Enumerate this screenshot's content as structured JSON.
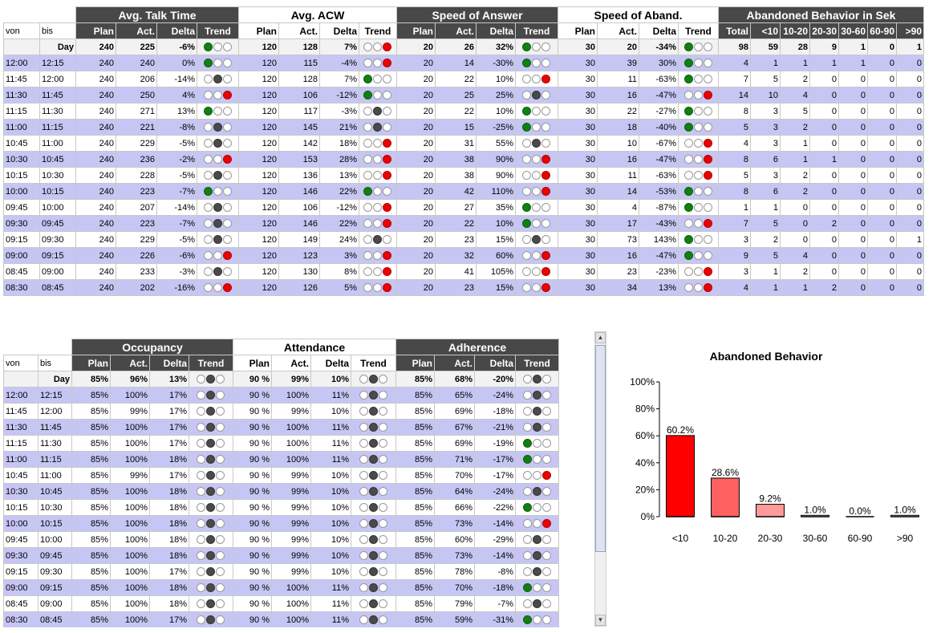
{
  "top_table": {
    "groups": [
      "Avg. Talk Time",
      "Avg. ACW",
      "Speed of Answer",
      "Speed of Aband.",
      "Abandoned Behavior in Sek"
    ],
    "sub_headers": {
      "von": "von",
      "bis": "bis",
      "metric": [
        "Plan",
        "Act.",
        "Delta",
        "Trend"
      ],
      "abandoned": [
        "Total",
        "<10",
        "10-20",
        "20-30",
        "30-60",
        "60-90",
        ">90"
      ]
    },
    "day_label": "Day",
    "day": {
      "talk": [
        "240",
        "225",
        "-6%",
        "gww"
      ],
      "acw": [
        "120",
        "128",
        "7%",
        "wwr"
      ],
      "soa": [
        "20",
        "26",
        "32%",
        "gww"
      ],
      "aband": [
        "30",
        "20",
        "-34%",
        "gww"
      ],
      "ab": [
        "98",
        "59",
        "28",
        "9",
        "1",
        "0",
        "1"
      ]
    },
    "rows": [
      {
        "von": "12:00",
        "bis": "12:15",
        "talk": [
          "240",
          "240",
          "0%",
          "gww"
        ],
        "acw": [
          "120",
          "115",
          "-4%",
          "wwr"
        ],
        "soa": [
          "20",
          "14",
          "-30%",
          "gww"
        ],
        "aband": [
          "30",
          "39",
          "30%",
          "gww"
        ],
        "ab": [
          "4",
          "1",
          "1",
          "1",
          "1",
          "0",
          "0"
        ]
      },
      {
        "von": "11:45",
        "bis": "12:00",
        "talk": [
          "240",
          "206",
          "-14%",
          "wyw"
        ],
        "acw": [
          "120",
          "128",
          "7%",
          "gww"
        ],
        "soa": [
          "20",
          "22",
          "10%",
          "wwr"
        ],
        "aband": [
          "30",
          "11",
          "-63%",
          "gww"
        ],
        "ab": [
          "7",
          "5",
          "2",
          "0",
          "0",
          "0",
          "0"
        ]
      },
      {
        "von": "11:30",
        "bis": "11:45",
        "talk": [
          "240",
          "250",
          "4%",
          "wwr"
        ],
        "acw": [
          "120",
          "106",
          "-12%",
          "gww"
        ],
        "soa": [
          "20",
          "25",
          "25%",
          "wyw"
        ],
        "aband": [
          "30",
          "16",
          "-47%",
          "wwr"
        ],
        "ab": [
          "14",
          "10",
          "4",
          "0",
          "0",
          "0",
          "0"
        ]
      },
      {
        "von": "11:15",
        "bis": "11:30",
        "talk": [
          "240",
          "271",
          "13%",
          "gww"
        ],
        "acw": [
          "120",
          "117",
          "-3%",
          "wyw"
        ],
        "soa": [
          "20",
          "22",
          "10%",
          "gww"
        ],
        "aband": [
          "30",
          "22",
          "-27%",
          "gww"
        ],
        "ab": [
          "8",
          "3",
          "5",
          "0",
          "0",
          "0",
          "0"
        ]
      },
      {
        "von": "11:00",
        "bis": "11:15",
        "talk": [
          "240",
          "221",
          "-8%",
          "wyw"
        ],
        "acw": [
          "120",
          "145",
          "21%",
          "wyw"
        ],
        "soa": [
          "20",
          "15",
          "-25%",
          "gww"
        ],
        "aband": [
          "30",
          "18",
          "-40%",
          "gww"
        ],
        "ab": [
          "5",
          "3",
          "2",
          "0",
          "0",
          "0",
          "0"
        ]
      },
      {
        "von": "10:45",
        "bis": "11:00",
        "talk": [
          "240",
          "229",
          "-5%",
          "wyw"
        ],
        "acw": [
          "120",
          "142",
          "18%",
          "wwr"
        ],
        "soa": [
          "20",
          "31",
          "55%",
          "wyw"
        ],
        "aband": [
          "30",
          "10",
          "-67%",
          "wwr"
        ],
        "ab": [
          "4",
          "3",
          "1",
          "0",
          "0",
          "0",
          "0"
        ]
      },
      {
        "von": "10:30",
        "bis": "10:45",
        "talk": [
          "240",
          "236",
          "-2%",
          "wwr"
        ],
        "acw": [
          "120",
          "153",
          "28%",
          "wwr"
        ],
        "soa": [
          "20",
          "38",
          "90%",
          "wwr"
        ],
        "aband": [
          "30",
          "16",
          "-47%",
          "wwr"
        ],
        "ab": [
          "8",
          "6",
          "1",
          "1",
          "0",
          "0",
          "0"
        ]
      },
      {
        "von": "10:15",
        "bis": "10:30",
        "talk": [
          "240",
          "228",
          "-5%",
          "wyw"
        ],
        "acw": [
          "120",
          "136",
          "13%",
          "wwr"
        ],
        "soa": [
          "20",
          "38",
          "90%",
          "wwr"
        ],
        "aband": [
          "30",
          "11",
          "-63%",
          "wwr"
        ],
        "ab": [
          "5",
          "3",
          "2",
          "0",
          "0",
          "0",
          "0"
        ]
      },
      {
        "von": "10:00",
        "bis": "10:15",
        "talk": [
          "240",
          "223",
          "-7%",
          "gww"
        ],
        "acw": [
          "120",
          "146",
          "22%",
          "gww"
        ],
        "soa": [
          "20",
          "42",
          "110%",
          "wwr"
        ],
        "aband": [
          "30",
          "14",
          "-53%",
          "gww"
        ],
        "ab": [
          "8",
          "6",
          "2",
          "0",
          "0",
          "0",
          "0"
        ]
      },
      {
        "von": "09:45",
        "bis": "10:00",
        "talk": [
          "240",
          "207",
          "-14%",
          "wyw"
        ],
        "acw": [
          "120",
          "106",
          "-12%",
          "wwr"
        ],
        "soa": [
          "20",
          "27",
          "35%",
          "gww"
        ],
        "aband": [
          "30",
          "4",
          "-87%",
          "gww"
        ],
        "ab": [
          "1",
          "1",
          "0",
          "0",
          "0",
          "0",
          "0"
        ]
      },
      {
        "von": "09:30",
        "bis": "09:45",
        "talk": [
          "240",
          "223",
          "-7%",
          "wyw"
        ],
        "acw": [
          "120",
          "146",
          "22%",
          "wwr"
        ],
        "soa": [
          "20",
          "22",
          "10%",
          "gww"
        ],
        "aband": [
          "30",
          "17",
          "-43%",
          "wwr"
        ],
        "ab": [
          "7",
          "5",
          "0",
          "2",
          "0",
          "0",
          "0"
        ]
      },
      {
        "von": "09:15",
        "bis": "09:30",
        "talk": [
          "240",
          "229",
          "-5%",
          "wyw"
        ],
        "acw": [
          "120",
          "149",
          "24%",
          "wyw"
        ],
        "soa": [
          "20",
          "23",
          "15%",
          "wyw"
        ],
        "aband": [
          "30",
          "73",
          "143%",
          "gww"
        ],
        "ab": [
          "3",
          "2",
          "0",
          "0",
          "0",
          "0",
          "1"
        ]
      },
      {
        "von": "09:00",
        "bis": "09:15",
        "talk": [
          "240",
          "226",
          "-6%",
          "wwr"
        ],
        "acw": [
          "120",
          "123",
          "3%",
          "wwr"
        ],
        "soa": [
          "20",
          "32",
          "60%",
          "wwr"
        ],
        "aband": [
          "30",
          "16",
          "-47%",
          "gww"
        ],
        "ab": [
          "9",
          "5",
          "4",
          "0",
          "0",
          "0",
          "0"
        ]
      },
      {
        "von": "08:45",
        "bis": "09:00",
        "talk": [
          "240",
          "233",
          "-3%",
          "wyw"
        ],
        "acw": [
          "120",
          "130",
          "8%",
          "wwr"
        ],
        "soa": [
          "20",
          "41",
          "105%",
          "wwr"
        ],
        "aband": [
          "30",
          "23",
          "-23%",
          "wwr"
        ],
        "ab": [
          "3",
          "1",
          "2",
          "0",
          "0",
          "0",
          "0"
        ]
      },
      {
        "von": "08:30",
        "bis": "08:45",
        "talk": [
          "240",
          "202",
          "-16%",
          "wwr"
        ],
        "acw": [
          "120",
          "126",
          "5%",
          "wwr"
        ],
        "soa": [
          "20",
          "23",
          "15%",
          "wwr"
        ],
        "aband": [
          "30",
          "34",
          "13%",
          "wwr"
        ],
        "ab": [
          "4",
          "1",
          "1",
          "2",
          "0",
          "0",
          "0"
        ]
      }
    ]
  },
  "bottom_table": {
    "groups": [
      "Occupancy",
      "Attendance",
      "Adherence"
    ],
    "sub_headers": {
      "von": "von",
      "bis": "bis",
      "metric": [
        "Plan",
        "Act.",
        "Delta",
        "Trend"
      ]
    },
    "day_label": "Day",
    "day": {
      "occ": [
        "85%",
        "96%",
        "13%",
        "wyw"
      ],
      "att": [
        "90 %",
        "99%",
        "10%",
        "wyw"
      ],
      "adh": [
        "85%",
        "68%",
        "-20%",
        "wyw"
      ]
    },
    "rows": [
      {
        "von": "12:00",
        "bis": "12:15",
        "occ": [
          "85%",
          "100%",
          "17%",
          "wyw"
        ],
        "att": [
          "90 %",
          "100%",
          "11%",
          "wyw"
        ],
        "adh": [
          "85%",
          "65%",
          "-24%",
          "wyw"
        ]
      },
      {
        "von": "11:45",
        "bis": "12:00",
        "occ": [
          "85%",
          "99%",
          "17%",
          "wyw"
        ],
        "att": [
          "90 %",
          "99%",
          "10%",
          "wyw"
        ],
        "adh": [
          "85%",
          "69%",
          "-18%",
          "wyw"
        ]
      },
      {
        "von": "11:30",
        "bis": "11:45",
        "occ": [
          "85%",
          "100%",
          "17%",
          "wyw"
        ],
        "att": [
          "90 %",
          "100%",
          "11%",
          "wyw"
        ],
        "adh": [
          "85%",
          "67%",
          "-21%",
          "wyw"
        ]
      },
      {
        "von": "11:15",
        "bis": "11:30",
        "occ": [
          "85%",
          "100%",
          "17%",
          "wyw"
        ],
        "att": [
          "90 %",
          "100%",
          "11%",
          "wyw"
        ],
        "adh": [
          "85%",
          "69%",
          "-19%",
          "gww"
        ]
      },
      {
        "von": "11:00",
        "bis": "11:15",
        "occ": [
          "85%",
          "100%",
          "18%",
          "wyw"
        ],
        "att": [
          "90 %",
          "100%",
          "11%",
          "wyw"
        ],
        "adh": [
          "85%",
          "71%",
          "-17%",
          "gww"
        ]
      },
      {
        "von": "10:45",
        "bis": "11:00",
        "occ": [
          "85%",
          "99%",
          "17%",
          "wyw"
        ],
        "att": [
          "90 %",
          "99%",
          "10%",
          "wyw"
        ],
        "adh": [
          "85%",
          "70%",
          "-17%",
          "wwr"
        ]
      },
      {
        "von": "10:30",
        "bis": "10:45",
        "occ": [
          "85%",
          "100%",
          "18%",
          "wyw"
        ],
        "att": [
          "90 %",
          "99%",
          "10%",
          "wyw"
        ],
        "adh": [
          "85%",
          "64%",
          "-24%",
          "wyw"
        ]
      },
      {
        "von": "10:15",
        "bis": "10:30",
        "occ": [
          "85%",
          "100%",
          "18%",
          "wyw"
        ],
        "att": [
          "90 %",
          "99%",
          "10%",
          "wyw"
        ],
        "adh": [
          "85%",
          "66%",
          "-22%",
          "gww"
        ]
      },
      {
        "von": "10:00",
        "bis": "10:15",
        "occ": [
          "85%",
          "100%",
          "18%",
          "wyw"
        ],
        "att": [
          "90 %",
          "99%",
          "10%",
          "wyw"
        ],
        "adh": [
          "85%",
          "73%",
          "-14%",
          "wwr"
        ]
      },
      {
        "von": "09:45",
        "bis": "10:00",
        "occ": [
          "85%",
          "100%",
          "18%",
          "wyw"
        ],
        "att": [
          "90 %",
          "99%",
          "10%",
          "wyw"
        ],
        "adh": [
          "85%",
          "60%",
          "-29%",
          "wyw"
        ]
      },
      {
        "von": "09:30",
        "bis": "09:45",
        "occ": [
          "85%",
          "100%",
          "18%",
          "wyw"
        ],
        "att": [
          "90 %",
          "99%",
          "10%",
          "wyw"
        ],
        "adh": [
          "85%",
          "73%",
          "-14%",
          "wyw"
        ]
      },
      {
        "von": "09:15",
        "bis": "09:30",
        "occ": [
          "85%",
          "100%",
          "17%",
          "wyw"
        ],
        "att": [
          "90 %",
          "99%",
          "10%",
          "wyw"
        ],
        "adh": [
          "85%",
          "78%",
          "-8%",
          "wyw"
        ]
      },
      {
        "von": "09:00",
        "bis": "09:15",
        "occ": [
          "85%",
          "100%",
          "18%",
          "wyw"
        ],
        "att": [
          "90 %",
          "100%",
          "11%",
          "wyw"
        ],
        "adh": [
          "85%",
          "70%",
          "-18%",
          "gww"
        ]
      },
      {
        "von": "08:45",
        "bis": "09:00",
        "occ": [
          "85%",
          "100%",
          "18%",
          "wyw"
        ],
        "att": [
          "90 %",
          "100%",
          "11%",
          "wyw"
        ],
        "adh": [
          "85%",
          "79%",
          "-7%",
          "wyw"
        ]
      },
      {
        "von": "08:30",
        "bis": "08:45",
        "occ": [
          "85%",
          "100%",
          "17%",
          "wyw"
        ],
        "att": [
          "90 %",
          "100%",
          "11%",
          "wyw"
        ],
        "adh": [
          "85%",
          "59%",
          "-31%",
          "gww"
        ]
      }
    ]
  },
  "chart_data": {
    "type": "bar",
    "title": "Abandoned Behavior",
    "categories": [
      "<10",
      "10-20",
      "20-30",
      "30-60",
      "60-90",
      ">90"
    ],
    "values": [
      60.2,
      28.6,
      9.2,
      1.0,
      0.0,
      1.0
    ],
    "value_labels": [
      "60.2%",
      "28.6%",
      "9.2%",
      "1.0%",
      "0.0%",
      "1.0%"
    ],
    "yticks": [
      "0%",
      "20%",
      "40%",
      "60%",
      "80%",
      "100%"
    ],
    "ylim": [
      0,
      100
    ],
    "colors": [
      "#ff0000",
      "#ff6060",
      "#ff9a9a",
      "#ffd0d0",
      "#ffe4e4",
      "#ffe4e4"
    ],
    "xlabel": "",
    "ylabel": ""
  },
  "trend_legend": {
    "g": "green",
    "y": "dark-grey",
    "r": "red",
    "w": "empty"
  },
  "colors": {
    "header_dark": "#484848",
    "row_alt": "#c6c6f5",
    "day_row": "#f2f2f2"
  }
}
